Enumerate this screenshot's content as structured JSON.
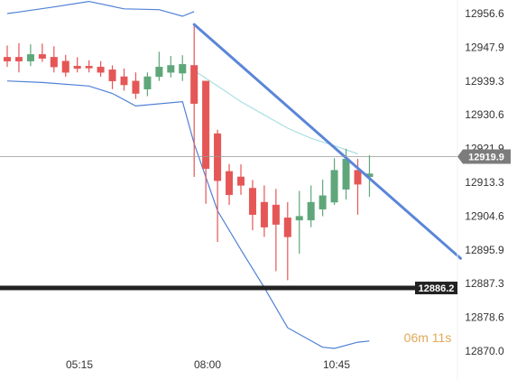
{
  "chart_data": {
    "type": "candlestick",
    "y_ticks": [
      "12956.6",
      "12947.9",
      "12939.3",
      "12930.6",
      "12921.9",
      "12913.3",
      "12904.6",
      "12895.9",
      "12887.3",
      "12878.6",
      "12870.0"
    ],
    "ylim": [
      12870.0,
      12956.6
    ],
    "x_ticks": [
      "05:15",
      "08:00",
      "10:45"
    ],
    "current_price_label": "12919.9",
    "current_price": 12919.9,
    "level_label": "12886.2",
    "level_price": 12886.2,
    "countdown": {
      "minutes": "06",
      "minutes_unit": "m",
      "seconds": "11",
      "seconds_unit": "s"
    },
    "candles": [
      {
        "o": 12945.4,
        "h": 12948.4,
        "l": 12942.9,
        "c": 12944.4
      },
      {
        "o": 12945.4,
        "h": 12949.0,
        "l": 12941.5,
        "c": 12944.4
      },
      {
        "o": 12944.4,
        "h": 12948.7,
        "l": 12943.1,
        "c": 12946.1
      },
      {
        "o": 12946.1,
        "h": 12948.9,
        "l": 12944.2,
        "c": 12945.1
      },
      {
        "o": 12945.4,
        "h": 12948.2,
        "l": 12941.5,
        "c": 12942.9
      },
      {
        "o": 12944.4,
        "h": 12946.0,
        "l": 12940.4,
        "c": 12941.5
      },
      {
        "o": 12943.1,
        "h": 12945.4,
        "l": 12941.5,
        "c": 12942.5
      },
      {
        "o": 12943.1,
        "h": 12944.6,
        "l": 12941.5,
        "c": 12942.6
      },
      {
        "o": 12942.9,
        "h": 12944.4,
        "l": 12940.4,
        "c": 12941.5
      },
      {
        "o": 12942.2,
        "h": 12943.3,
        "l": 12937.2,
        "c": 12939.3
      },
      {
        "o": 12940.4,
        "h": 12942.5,
        "l": 12936.8,
        "c": 12938.3
      },
      {
        "o": 12939.3,
        "h": 12941.5,
        "l": 12934.7,
        "c": 12936.1
      },
      {
        "o": 12937.2,
        "h": 12941.5,
        "l": 12935.4,
        "c": 12940.4
      },
      {
        "o": 12940.4,
        "h": 12946.8,
        "l": 12939.3,
        "c": 12942.9
      },
      {
        "o": 12941.5,
        "h": 12945.7,
        "l": 12940.2,
        "c": 12943.3
      },
      {
        "o": 12941.3,
        "h": 12945.9,
        "l": 12939.3,
        "c": 12943.6
      },
      {
        "o": 12943.3,
        "h": 12953.4,
        "l": 12914.7,
        "c": 12933.5
      },
      {
        "o": 12939.3,
        "h": 12939.3,
        "l": 12907.8,
        "c": 12916.8
      },
      {
        "o": 12925.8,
        "h": 12926.8,
        "l": 12898.0,
        "c": 12913.7
      },
      {
        "o": 12916.1,
        "h": 12918.0,
        "l": 12907.5,
        "c": 12910.1
      },
      {
        "o": 12914.7,
        "h": 12917.9,
        "l": 12910.1,
        "c": 12912.5
      },
      {
        "o": 12911.8,
        "h": 12913.9,
        "l": 12901.0,
        "c": 12905.0
      },
      {
        "o": 12908.2,
        "h": 12912.5,
        "l": 12899.3,
        "c": 12901.8
      },
      {
        "o": 12907.5,
        "h": 12911.6,
        "l": 12890.5,
        "c": 12902.5
      },
      {
        "o": 12904.2,
        "h": 12908.2,
        "l": 12888.2,
        "c": 12899.3
      },
      {
        "o": 12903.6,
        "h": 12911.1,
        "l": 12895.0,
        "c": 12904.6
      },
      {
        "o": 12903.6,
        "h": 12912.5,
        "l": 12901.8,
        "c": 12908.2
      },
      {
        "o": 12906.4,
        "h": 12914.0,
        "l": 12904.6,
        "c": 12909.9
      },
      {
        "o": 12908.2,
        "h": 12919.5,
        "l": 12907.5,
        "c": 12916.4
      },
      {
        "o": 12911.5,
        "h": 12921.9,
        "l": 12908.9,
        "c": 12919.3
      },
      {
        "o": 12916.4,
        "h": 12919.3,
        "l": 12905.0,
        "c": 12912.8
      },
      {
        "o": 12914.7,
        "h": 12920.3,
        "l": 12909.6,
        "c": 12915.5
      }
    ],
    "bands": {
      "upper": [
        [
          0,
          12956.6
        ],
        [
          1,
          12957.0
        ],
        [
          4,
          12958.3
        ],
        [
          7,
          12959.7
        ],
        [
          10,
          12957.8
        ],
        [
          13,
          12957.6
        ],
        [
          15,
          12955.9
        ],
        [
          16,
          12957.1
        ]
      ],
      "lower": [
        [
          0,
          12939.3
        ],
        [
          3,
          12938.9
        ],
        [
          7,
          12938.0
        ],
        [
          9,
          12936.1
        ],
        [
          11,
          12932.9
        ],
        [
          15,
          12934.0
        ],
        [
          16,
          12923.2
        ],
        [
          18,
          12906.0
        ],
        [
          20,
          12896.0
        ],
        [
          22,
          12886.3
        ],
        [
          24,
          12876.0
        ],
        [
          27,
          12871.0
        ],
        [
          28,
          12870.7
        ],
        [
          30,
          12872.3
        ],
        [
          31,
          12872.6
        ]
      ],
      "middle": [
        [
          16,
          12942.0
        ],
        [
          18,
          12938.0
        ],
        [
          20,
          12934.0
        ],
        [
          22,
          12930.6
        ],
        [
          24,
          12927.2
        ],
        [
          26,
          12924.6
        ],
        [
          28,
          12922.7
        ],
        [
          30,
          12920.6
        ]
      ]
    },
    "trendline": {
      "start": {
        "candle": 16,
        "price": 12953.8
      },
      "end": {
        "candle": 38.8,
        "price": 12893.8
      }
    },
    "colors": {
      "up": "#5fa77a",
      "down": "#e55656",
      "band": "#4f81d6",
      "middle": "#a9dfe2",
      "trend": "#5a86d8",
      "level": "#222222",
      "price_tag": "#7c7c7c",
      "countdown": "#e0a95a"
    }
  }
}
